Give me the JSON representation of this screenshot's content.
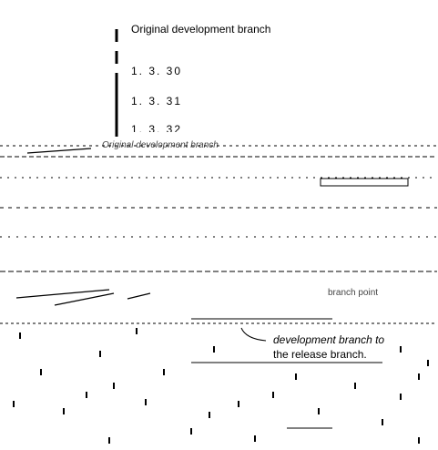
{
  "diagram": {
    "title": "Original development branch",
    "versions": [
      "1. 3. 30",
      "1. 3. 31",
      "1. 3. 32"
    ],
    "legend_label": "Original development branch",
    "checkpoint_label": "branch point",
    "note_line1": "development branch to",
    "note_line2": "the release branch."
  }
}
